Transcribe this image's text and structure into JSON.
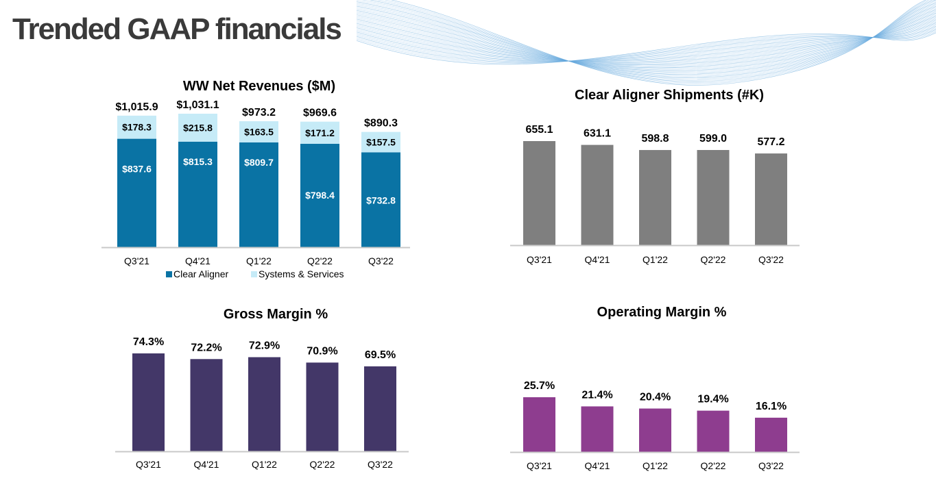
{
  "page": {
    "title": "Trended GAAP financials"
  },
  "chart_data": [
    {
      "id": "revenues",
      "type": "bar",
      "stacked": true,
      "title": "WW Net Revenues ($M)",
      "categories": [
        "Q3'21",
        "Q4'21",
        "Q1'22",
        "Q2'22",
        "Q3'22"
      ],
      "series": [
        {
          "name": "Clear Aligner",
          "values": [
            837.6,
            815.3,
            809.7,
            798.4,
            732.8
          ],
          "labels": [
            "$837.6",
            "$815.3",
            "$809.7",
            "$798.4",
            "$732.8"
          ],
          "color": "#0a73a4",
          "label_color": "#ffffff"
        },
        {
          "name": "Systems & Services",
          "values": [
            178.3,
            215.8,
            163.5,
            171.2,
            157.5
          ],
          "labels": [
            "$178.3",
            "$215.8",
            "$163.5",
            "$171.2",
            "$157.5"
          ],
          "color": "#c6ebf7",
          "label_color": "#000000"
        }
      ],
      "totals": [
        "$1,015.9",
        "$1,031.1",
        "$973.2",
        "$969.6",
        "$890.3"
      ],
      "legend": "bottom",
      "grid": false
    },
    {
      "id": "shipments",
      "type": "bar",
      "title": "Clear Aligner Shipments (#K)",
      "categories": [
        "Q3'21",
        "Q4'21",
        "Q1'22",
        "Q2'22",
        "Q3'22"
      ],
      "values": [
        655.1,
        631.1,
        598.8,
        599.0,
        577.2
      ],
      "labels": [
        "655.1",
        "631.1",
        "598.8",
        "599.0",
        "577.2"
      ],
      "color": "#7f7f7f",
      "grid": false
    },
    {
      "id": "gross-margin",
      "type": "bar",
      "title": "Gross Margin %",
      "categories": [
        "Q3'21",
        "Q4'21",
        "Q1'22",
        "Q2'22",
        "Q3'22"
      ],
      "values": [
        74.3,
        72.2,
        72.9,
        70.9,
        69.5
      ],
      "labels": [
        "74.3%",
        "72.2%",
        "72.9%",
        "70.9%",
        "69.5%"
      ],
      "color": "#433768",
      "grid": false
    },
    {
      "id": "operating-margin",
      "type": "bar",
      "title": "Operating Margin %",
      "categories": [
        "Q3'21",
        "Q4'21",
        "Q1'22",
        "Q2'22",
        "Q3'22"
      ],
      "values": [
        25.7,
        21.4,
        20.4,
        19.4,
        16.1
      ],
      "labels": [
        "25.7%",
        "21.4%",
        "20.4%",
        "19.4%",
        "16.1%"
      ],
      "color": "#8e3d8f",
      "grid": false
    }
  ]
}
